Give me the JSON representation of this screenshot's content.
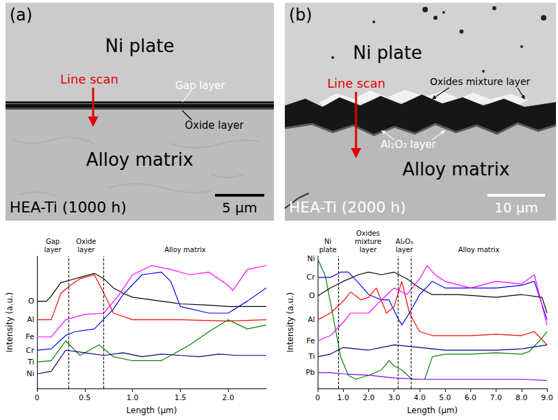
{
  "micrographs": [
    {
      "panel": "(a)",
      "upper": "Ni plate",
      "lower": "Alloy matrix",
      "line_scan": "Line scan",
      "layers": [
        "Gap layer",
        "Oxide layer"
      ],
      "sample": "HEA-Ti (1000 h)",
      "scale_bar": "5 μm"
    },
    {
      "panel": "(b)",
      "upper": "Ni plate",
      "lower": "Alloy matrix",
      "line_scan": "Line scan",
      "layers": [
        "Oxides mixture layer",
        "Al₂O₃ layer"
      ],
      "sample": "HEA-Ti (2000 h)",
      "scale_bar": "10 μm"
    }
  ],
  "chart_data": [
    {
      "type": "line",
      "x_label": "Length (μm)",
      "y_label": "Intensity (a.u.)",
      "xlim": [
        0,
        2.4
      ],
      "xticks": [
        0,
        0.5,
        {
          "value": 1,
          "label": "1.0"
        },
        1.5,
        {
          "value": 2,
          "label": "2.0"
        }
      ],
      "ylim": [
        0,
        100
      ],
      "tick_labels": "x",
      "grid": false,
      "regions": [
        {
          "label": "Gap layer",
          "from": 0,
          "to": 0.33
        },
        {
          "label": "Oxide layer",
          "from": 0.33,
          "to": 0.7
        },
        {
          "label": "Alloy matrix",
          "from": 0.7,
          "to": 2.4
        }
      ],
      "series": [
        {
          "name": "O",
          "color": "#000000",
          "x": [
            0,
            0.1,
            0.15,
            0.25,
            0.35,
            0.5,
            0.6,
            0.7,
            0.8,
            0.9,
            1.0,
            1.2,
            1.5,
            1.8,
            2.0,
            2.2,
            2.4
          ],
          "values": [
            66,
            66,
            70,
            80,
            82,
            85,
            87,
            83,
            76,
            72,
            69,
            67,
            64,
            63,
            62,
            62,
            62
          ]
        },
        {
          "name": "Al",
          "color": "#ff0000",
          "x": [
            0,
            0.15,
            0.25,
            0.35,
            0.45,
            0.6,
            0.7,
            0.8,
            1.0,
            1.5,
            2.0,
            2.4
          ],
          "values": [
            52,
            52,
            72,
            78,
            83,
            86,
            72,
            57,
            52,
            52,
            51,
            52
          ]
        },
        {
          "name": "Fe",
          "color": "#ff00ff",
          "x": [
            0,
            0.15,
            0.3,
            0.5,
            0.7,
            0.85,
            1.0,
            1.2,
            1.4,
            1.6,
            1.8,
            2.0,
            2.05,
            2.2,
            2.4
          ],
          "values": [
            39,
            39,
            52,
            56,
            57,
            70,
            86,
            93,
            90,
            86,
            88,
            78,
            74,
            90,
            93
          ]
        },
        {
          "name": "Cr",
          "color": "#0000ff",
          "x": [
            0,
            0.15,
            0.3,
            0.4,
            0.6,
            0.8,
            0.9,
            1.1,
            1.3,
            1.4,
            1.5,
            1.8,
            2.0,
            2.2,
            2.4
          ],
          "values": [
            29,
            30,
            40,
            43,
            45,
            60,
            71,
            86,
            88,
            81,
            62,
            57,
            57,
            66,
            76
          ]
        },
        {
          "name": "Ti",
          "color": "#008000",
          "x": [
            0,
            0.15,
            0.3,
            0.45,
            0.65,
            0.8,
            1.0,
            1.3,
            1.6,
            1.8,
            2.0,
            2.2,
            2.4
          ],
          "values": [
            20,
            21,
            36,
            25,
            33,
            24,
            21,
            21,
            33,
            43,
            52,
            45,
            48
          ]
        },
        {
          "name": "Ni",
          "color": "#000080",
          "x": [
            0,
            0.15,
            0.3,
            0.5,
            0.7,
            0.9,
            1.1,
            1.3,
            1.5,
            1.7,
            1.9,
            2.1,
            2.4
          ],
          "values": [
            11,
            13,
            29,
            27,
            25,
            27,
            24,
            26,
            25,
            24,
            26,
            25,
            25
          ]
        }
      ]
    },
    {
      "type": "line",
      "x_label": "Length (μm)",
      "y_label": "Intensity (a.u.)",
      "xlim": [
        0,
        9
      ],
      "xticks": [
        0,
        {
          "value": 1,
          "label": "1.0"
        },
        {
          "value": 2,
          "label": "2.0"
        },
        {
          "value": 3,
          "label": "3.0"
        },
        {
          "value": 4,
          "label": "4.0"
        },
        {
          "value": 5,
          "label": "5.0"
        },
        {
          "value": 6,
          "label": "6.0"
        },
        {
          "value": 7,
          "label": "7.0"
        },
        {
          "value": 8,
          "label": "8.0"
        },
        {
          "value": 9,
          "label": "9.0"
        }
      ],
      "ylim": [
        0,
        100
      ],
      "tick_labels": "x",
      "grid": false,
      "regions": [
        {
          "label": "Ni plate",
          "from": 0,
          "to": 0.8
        },
        {
          "label": "Oxides mixture layer",
          "from": 0.8,
          "to": 3.15
        },
        {
          "label": "Al₂O₃ layer",
          "from": 3.15,
          "to": 3.65
        },
        {
          "label": "Alloy matrix",
          "from": 3.65,
          "to": 9
        }
      ],
      "series": [
        {
          "name": "Ni",
          "color": "#008000",
          "x": [
            0,
            0.3,
            0.6,
            0.9,
            1.2,
            1.5,
            2.0,
            2.5,
            2.8,
            3.0,
            3.3,
            3.7,
            4.2,
            4.5,
            5.0,
            6.0,
            7.0,
            8.0,
            8.3,
            8.7,
            9.0
          ],
          "values": [
            98,
            85,
            55,
            24,
            10,
            7,
            10,
            14,
            21,
            17,
            14,
            7,
            7,
            24,
            26,
            26,
            27,
            26,
            28,
            36,
            43
          ]
        },
        {
          "name": "O",
          "color": "#000000",
          "x": [
            0,
            0.5,
            1.0,
            1.6,
            2.0,
            2.5,
            3.0,
            3.5,
            4.0,
            4.5,
            5.5,
            7.0,
            8.0,
            8.8,
            9.0
          ],
          "values": [
            70,
            76,
            81,
            86,
            88,
            86,
            88,
            83,
            76,
            71,
            71,
            69,
            71,
            69,
            57
          ]
        },
        {
          "name": "Cr",
          "color": "#0000ff",
          "x": [
            0,
            0.5,
            0.9,
            1.2,
            1.6,
            2.0,
            2.5,
            2.8,
            3.1,
            3.3,
            3.6,
            4.0,
            4.5,
            5.0,
            6.0,
            7.0,
            8.0,
            8.5,
            9.0
          ],
          "values": [
            84,
            84,
            88,
            88,
            80,
            71,
            67,
            67,
            55,
            48,
            57,
            71,
            81,
            76,
            76,
            76,
            78,
            81,
            52
          ]
        },
        {
          "name": "Al",
          "color": "#ff0000",
          "x": [
            0,
            0.5,
            1.0,
            1.3,
            1.7,
            2.0,
            2.3,
            2.7,
            3.0,
            3.3,
            3.6,
            4.0,
            4.5,
            6.0,
            7.0,
            8.0,
            8.5,
            9.0
          ],
          "values": [
            52,
            57,
            66,
            73,
            67,
            69,
            76,
            57,
            62,
            81,
            57,
            43,
            40,
            40,
            41,
            40,
            43,
            33
          ]
        },
        {
          "name": "Fe",
          "color": "#ff00ff",
          "x": [
            0,
            0.5,
            1.0,
            1.3,
            2.0,
            2.5,
            3.0,
            3.5,
            4.0,
            4.3,
            4.6,
            5.0,
            6.0,
            7.0,
            8.0,
            8.5,
            9.0
          ],
          "values": [
            36,
            40,
            50,
            57,
            57,
            67,
            76,
            71,
            83,
            93,
            86,
            81,
            76,
            81,
            79,
            86,
            48
          ]
        },
        {
          "name": "Ti",
          "color": "#000080",
          "x": [
            0,
            0.5,
            1.0,
            2.0,
            3.0,
            4.0,
            5.0,
            6.0,
            7.0,
            8.0,
            9.0
          ],
          "values": [
            24,
            26,
            31,
            29,
            33,
            31,
            29,
            29,
            29,
            30,
            33
          ]
        },
        {
          "name": "Pb",
          "color": "#8000ff",
          "x": [
            0,
            0.5,
            1.0,
            2.0,
            3.0,
            4.0,
            6.0,
            8.0,
            9.0
          ],
          "values": [
            12,
            12,
            11,
            10,
            8,
            7,
            7,
            7,
            6
          ]
        }
      ]
    }
  ]
}
